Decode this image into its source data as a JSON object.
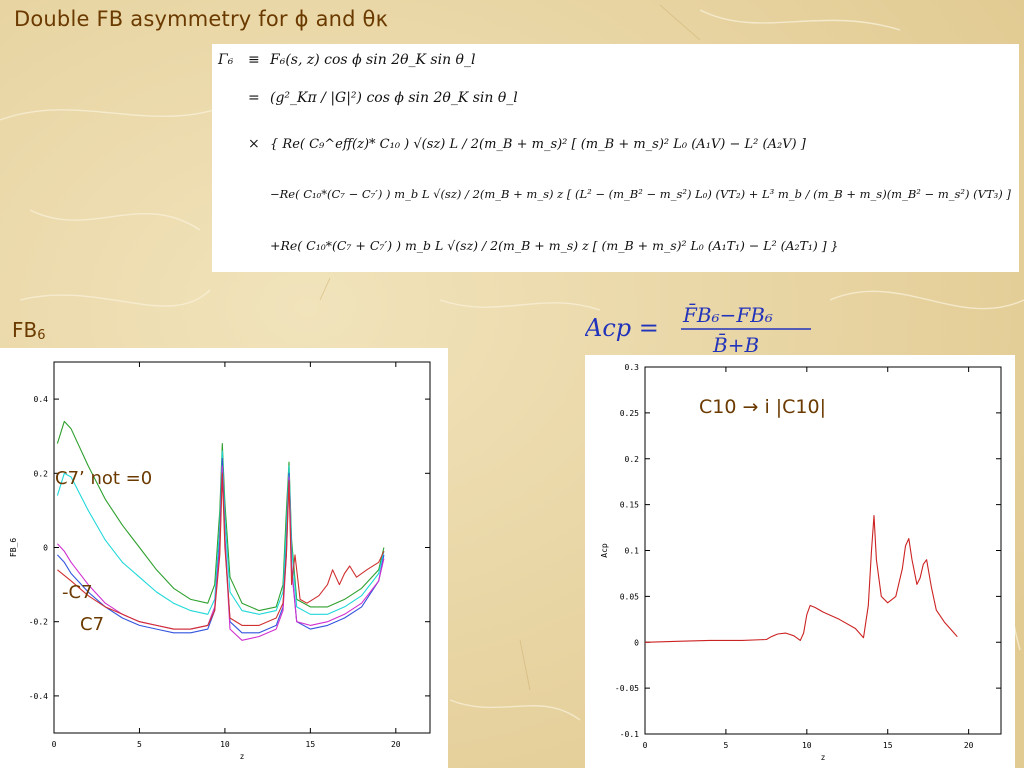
{
  "slide": {
    "title": "Double FB asymmetry for ϕ and θκ",
    "fb_label": "FB",
    "fb_label_sub": "6"
  },
  "formula": {
    "lines": [
      {
        "lhs": "Γ₆",
        "op": "≡",
        "rhs": "F₆(s, z) cos ϕ sin 2θ_K sin θ_l"
      },
      {
        "lhs": "",
        "op": "=",
        "rhs": "(g²_Kπ / |G|²) cos ϕ sin 2θ_K sin θ_l"
      },
      {
        "lhs": "",
        "op": "×",
        "rhs": "{ Re( C₉^eff(z)* C₁₀ ) √(sz) L / 2(m_B + m_s)² [ (m_B + m_s)² L₀ (A₁V) − L² (A₂V) ]"
      },
      {
        "lhs": "",
        "op": "",
        "rhs": "−Re( C₁₀*(C₇ − C₇′) ) m_b L √(sz) / 2(m_B + m_s) z [ (L² − (m_B² − m_s²) L₀) (VT₂) + L³ m_b / (m_B + m_s)(m_B² − m_s²) (VT₃) ]"
      },
      {
        "lhs": "",
        "op": "",
        "rhs": "+Re( C₁₀*(C₇ + C₇′) ) m_b L √(sz) / 2(m_B + m_s) z [ (m_B + m_s)² L₀ (A₁T₁) − L² (A₂T₁) ] }"
      }
    ]
  },
  "acp_formula": {
    "lhs": "Acp =",
    "numerator": "F̄B₆−FB₆",
    "denominator": "B̄+B"
  },
  "chart_data": [
    {
      "type": "line",
      "xlabel": "z",
      "ylabel": "FB_6",
      "xlim": [
        0,
        22
      ],
      "ylim": [
        -0.5,
        0.5
      ],
      "xticks": [
        "0",
        "5",
        "10",
        "15",
        "20"
      ],
      "yticks": [
        "0.4",
        "0.2",
        "0",
        "-0.2",
        "-0.4"
      ],
      "grid": false,
      "annotations": [
        "C7’  not =0",
        "-C7",
        "C7"
      ],
      "series": [
        {
          "color": "#2ea02e",
          "x": [
            0.2,
            0.6,
            1,
            2,
            3,
            4,
            5,
            6,
            7,
            8,
            9,
            9.4,
            9.7,
            9.85,
            10,
            10.3,
            11,
            12,
            13,
            13.4,
            13.6,
            13.75,
            13.9,
            14.2,
            15,
            16,
            17,
            18,
            19,
            19.3
          ],
          "y": [
            0.28,
            0.34,
            0.32,
            0.22,
            0.13,
            0.06,
            0.0,
            -0.06,
            -0.11,
            -0.14,
            -0.15,
            -0.1,
            0.1,
            0.28,
            0.12,
            -0.08,
            -0.15,
            -0.17,
            -0.16,
            -0.1,
            0.1,
            0.23,
            0.02,
            -0.14,
            -0.16,
            -0.16,
            -0.14,
            -0.11,
            -0.06,
            0.0
          ]
        },
        {
          "color": "#20d8d8",
          "x": [
            0.2,
            0.6,
            1,
            2,
            3,
            4,
            5,
            6,
            7,
            8,
            9,
            9.4,
            9.7,
            9.85,
            10,
            10.3,
            11,
            12,
            13,
            13.4,
            13.6,
            13.75,
            13.9,
            14.2,
            15,
            16,
            17,
            18,
            19,
            19.3
          ],
          "y": [
            0.14,
            0.2,
            0.19,
            0.1,
            0.02,
            -0.04,
            -0.08,
            -0.12,
            -0.15,
            -0.17,
            -0.18,
            -0.14,
            0.06,
            0.26,
            0.08,
            -0.12,
            -0.17,
            -0.18,
            -0.17,
            -0.12,
            0.05,
            0.22,
            0.0,
            -0.16,
            -0.18,
            -0.18,
            -0.16,
            -0.13,
            -0.07,
            -0.01
          ]
        },
        {
          "color": "#3355dd",
          "x": [
            0.2,
            0.6,
            1,
            2,
            3,
            4,
            5,
            6,
            7,
            8,
            9,
            9.4,
            9.7,
            9.85,
            10,
            10.3,
            11,
            12,
            13,
            13.4,
            13.6,
            13.75,
            13.9,
            14.2,
            15,
            16,
            17,
            18,
            19,
            19.3
          ],
          "y": [
            -0.02,
            -0.04,
            -0.07,
            -0.12,
            -0.16,
            -0.19,
            -0.21,
            -0.22,
            -0.23,
            -0.23,
            -0.22,
            -0.17,
            0.02,
            0.24,
            0.03,
            -0.2,
            -0.23,
            -0.23,
            -0.21,
            -0.16,
            0.0,
            0.2,
            -0.05,
            -0.2,
            -0.22,
            -0.21,
            -0.19,
            -0.16,
            -0.09,
            -0.02
          ]
        },
        {
          "color": "#d030d0",
          "x": [
            0.2,
            0.6,
            1,
            2,
            3,
            4,
            5,
            6,
            7,
            8,
            9,
            9.4,
            9.7,
            9.85,
            10,
            10.3,
            11,
            12,
            13,
            13.4,
            13.6,
            13.75,
            13.9,
            14.2,
            15,
            16,
            17,
            18,
            19,
            19.3
          ],
          "y": [
            0.01,
            -0.01,
            -0.04,
            -0.1,
            -0.15,
            -0.18,
            -0.2,
            -0.21,
            -0.22,
            -0.22,
            -0.21,
            -0.16,
            0.0,
            0.22,
            0.02,
            -0.22,
            -0.25,
            -0.24,
            -0.22,
            -0.17,
            -0.02,
            0.19,
            -0.06,
            -0.2,
            -0.21,
            -0.2,
            -0.18,
            -0.15,
            -0.09,
            -0.03
          ]
        },
        {
          "color": "#d03030",
          "x": [
            0.2,
            1,
            2,
            3,
            4,
            5,
            6,
            7,
            8,
            9,
            9.4,
            9.7,
            9.85,
            10,
            10.3,
            11,
            12,
            13,
            13.4,
            13.6,
            13.75,
            13.9,
            14.1,
            14.4,
            14.8,
            15.5,
            16,
            16.3,
            16.7,
            17,
            17.3,
            17.7,
            18.3,
            19,
            19.3
          ],
          "y": [
            -0.06,
            -0.09,
            -0.13,
            -0.16,
            -0.18,
            -0.2,
            -0.21,
            -0.22,
            -0.22,
            -0.21,
            -0.17,
            -0.02,
            0.2,
            0.0,
            -0.19,
            -0.21,
            -0.21,
            -0.19,
            -0.15,
            -0.02,
            0.18,
            -0.1,
            -0.02,
            -0.14,
            -0.15,
            -0.13,
            -0.1,
            -0.06,
            -0.1,
            -0.07,
            -0.05,
            -0.08,
            -0.06,
            -0.04,
            -0.01
          ]
        }
      ]
    },
    {
      "type": "line",
      "xlabel": "z",
      "ylabel": "Acp",
      "xlim": [
        0,
        22
      ],
      "ylim": [
        -0.1,
        0.3
      ],
      "xticks": [
        "0",
        "5",
        "10",
        "15",
        "20"
      ],
      "yticks": [
        "0.3",
        "0.25",
        "0.2",
        "0.15",
        "0.1",
        "0.05",
        "0",
        "-0.05",
        "-0.1"
      ],
      "grid": false,
      "annotation": "C10 → i |C10|",
      "series": [
        {
          "color": "#cc2222",
          "x": [
            0,
            2,
            4,
            6,
            7.5,
            7.8,
            8.2,
            8.7,
            9.2,
            9.6,
            9.8,
            10,
            10.2,
            10.5,
            11,
            12,
            13,
            13.5,
            13.8,
            14,
            14.15,
            14.3,
            14.6,
            15,
            15.5,
            15.9,
            16.1,
            16.3,
            16.5,
            16.8,
            17,
            17.2,
            17.4,
            17.7,
            18,
            18.5,
            19,
            19.3
          ],
          "y": [
            0.0,
            0.001,
            0.002,
            0.002,
            0.003,
            0.006,
            0.009,
            0.01,
            0.007,
            0.002,
            0.01,
            0.03,
            0.04,
            0.038,
            0.033,
            0.025,
            0.015,
            0.005,
            0.04,
            0.1,
            0.138,
            0.09,
            0.05,
            0.043,
            0.05,
            0.08,
            0.105,
            0.113,
            0.09,
            0.063,
            0.07,
            0.085,
            0.09,
            0.06,
            0.035,
            0.022,
            0.012,
            0.006
          ]
        }
      ]
    }
  ]
}
